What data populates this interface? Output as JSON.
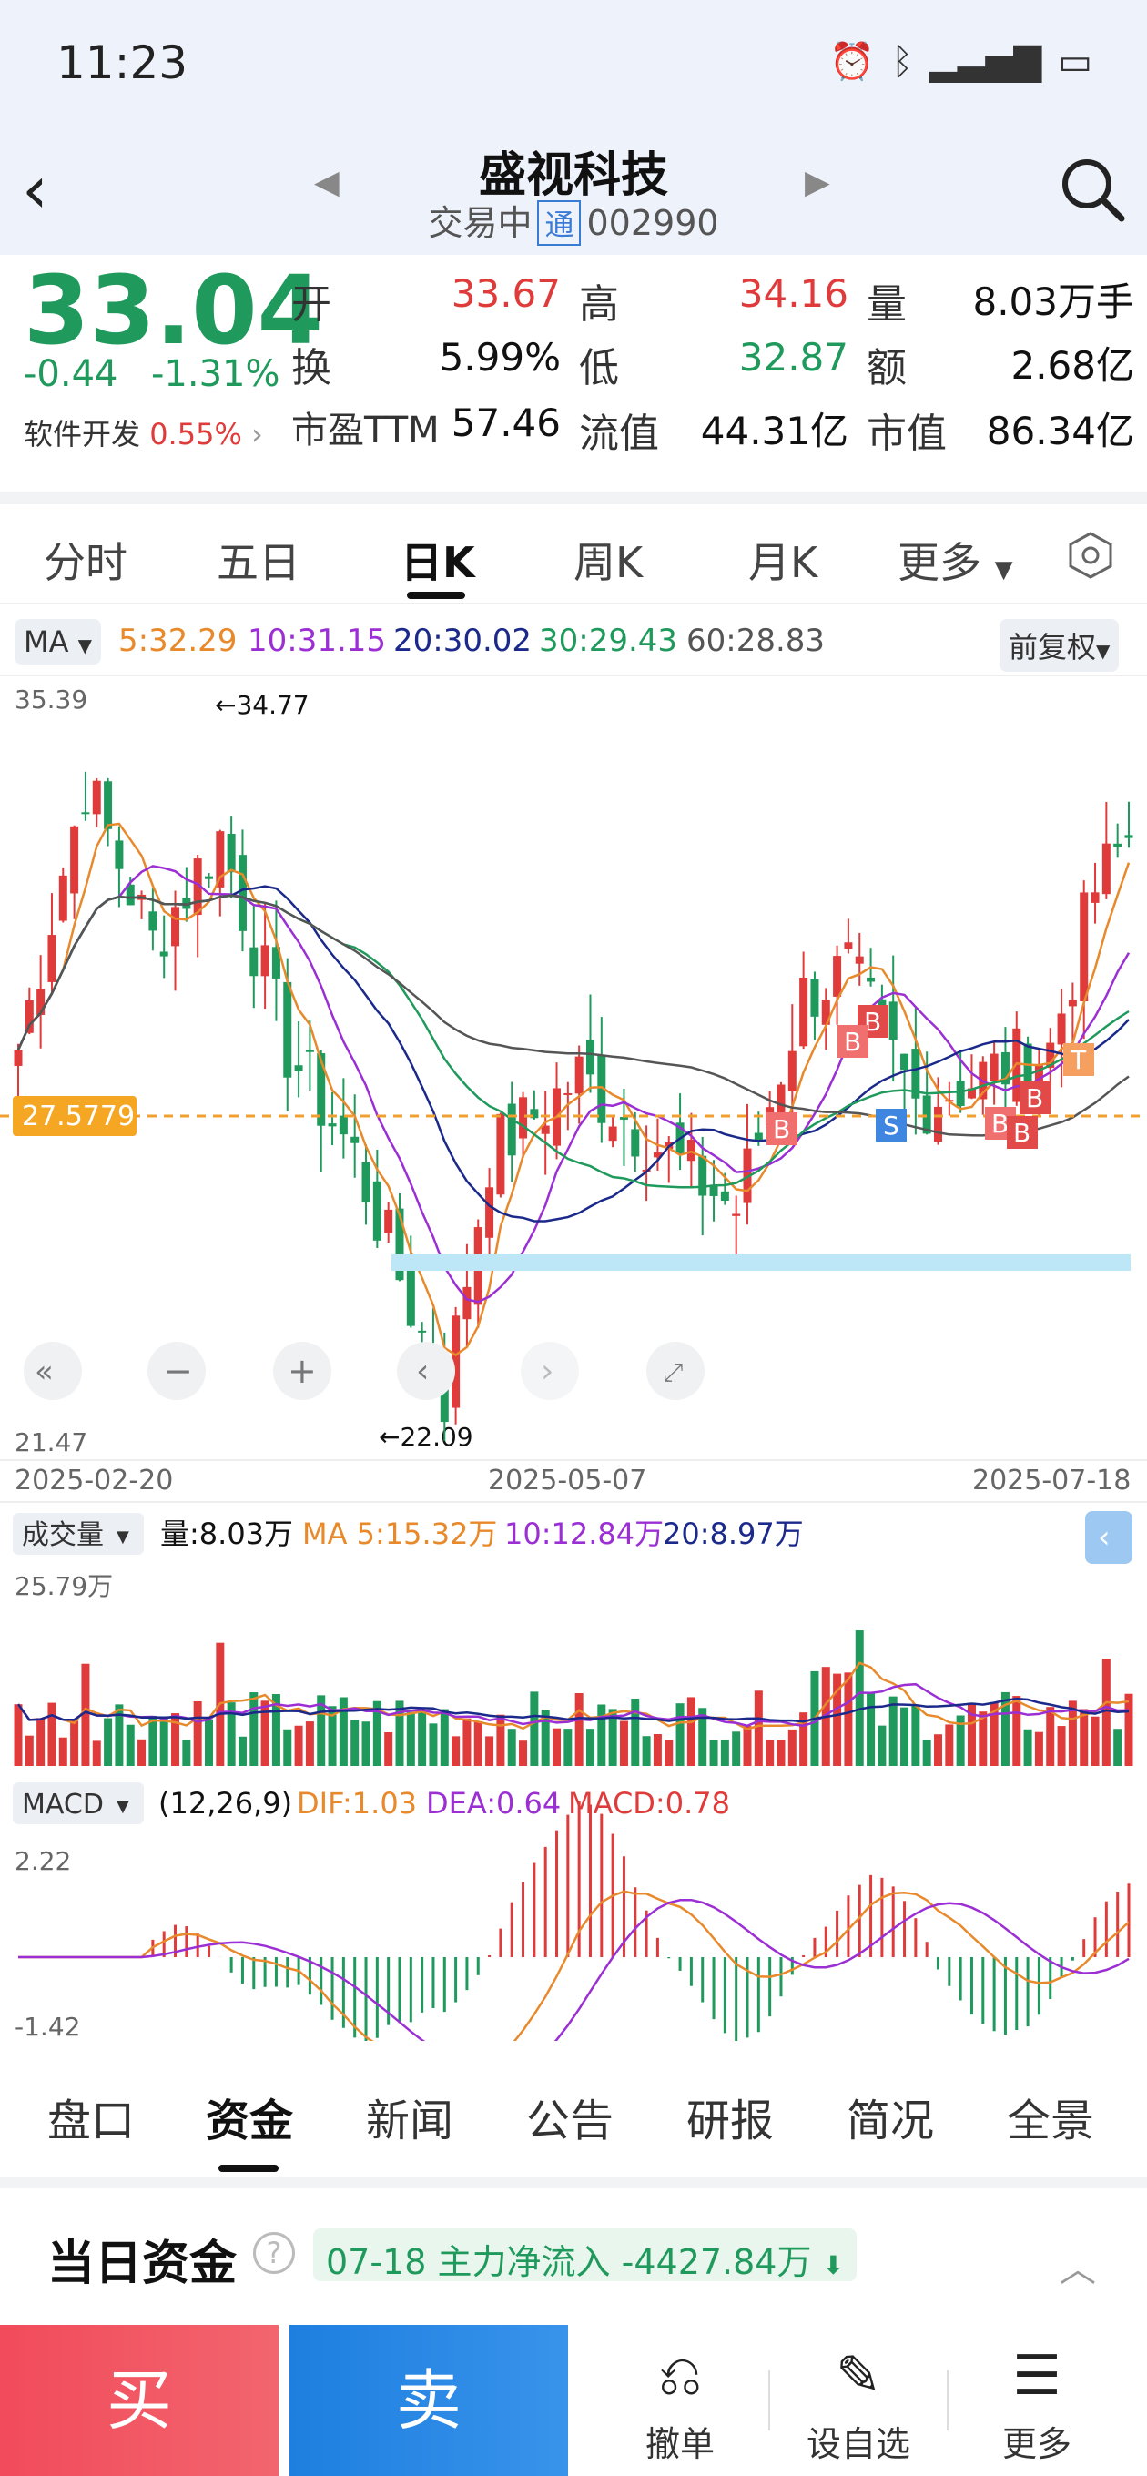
{
  "status": {
    "time": "11:23"
  },
  "header": {
    "name": "盛视科技",
    "state": "交易中",
    "tong": "通",
    "code": "002990"
  },
  "quote": {
    "price": "33.04",
    "change": "-0.44",
    "change_pct": "-1.31%",
    "sector": "软件开发",
    "sector_pct": "0.55%",
    "open_label": "开",
    "open": "33.67",
    "high_label": "高",
    "high": "34.16",
    "vol_label": "量",
    "vol": "8.03万手",
    "turn_label": "换",
    "turn": "5.99%",
    "low_label": "低",
    "low": "32.87",
    "amt_label": "额",
    "amt": "2.68亿",
    "pe_label": "市盈TTM",
    "pe": "57.46",
    "float_label": "流值",
    "float": "44.31亿",
    "cap_label": "市值",
    "cap": "86.34亿"
  },
  "tabs": [
    "分时",
    "五日",
    "日K",
    "周K",
    "月K",
    "更多"
  ],
  "ma": {
    "selector": "MA",
    "ma5": "5:32.29",
    "ma10": "10:31.15",
    "ma20": "20:30.02",
    "ma30": "30:29.43",
    "ma60": "60:28.83",
    "adjust": "前复权"
  },
  "colors": {
    "ma5": "#e8892b",
    "ma10": "#9b2fd4",
    "ma20": "#1b2a8a",
    "ma30": "#1f9a5c",
    "ma60": "#555555",
    "up": "#e03b3b",
    "down": "#1f9a5c"
  },
  "kline": {
    "ymax": "35.39",
    "ymin": "21.47",
    "hi_mark": "←34.77",
    "lo_mark": "←22.09",
    "ref_price": "27.5779",
    "date_start": "2025-02-20",
    "date_mid": "2025-05-07",
    "date_end": "2025-07-18"
  },
  "volume": {
    "selector": "成交量",
    "vol": "量:8.03万",
    "ma5": "MA 5:15.32万",
    "ma10": "10:12.84万",
    "ma20": "20:8.97万",
    "ymax": "25.79万"
  },
  "macd": {
    "selector": "MACD",
    "params": "(12,26,9)",
    "dif": "DIF:1.03",
    "dea": "DEA:0.64",
    "macd": "MACD:0.78",
    "ymax": "2.22",
    "ymin": "-1.42"
  },
  "bottom_tabs": [
    "盘口",
    "资金",
    "新闻",
    "公告",
    "研报",
    "简况",
    "全景"
  ],
  "fund": {
    "title": "当日资金",
    "date": "07-18",
    "label": "主力净流入",
    "value": "-4427.84万"
  },
  "actions": {
    "buy": "买",
    "sell": "卖",
    "cancel": "撤单",
    "watch": "设自选",
    "more": "更多"
  },
  "markers": {
    "buy": "B",
    "sell": "S",
    "t": "T"
  }
}
